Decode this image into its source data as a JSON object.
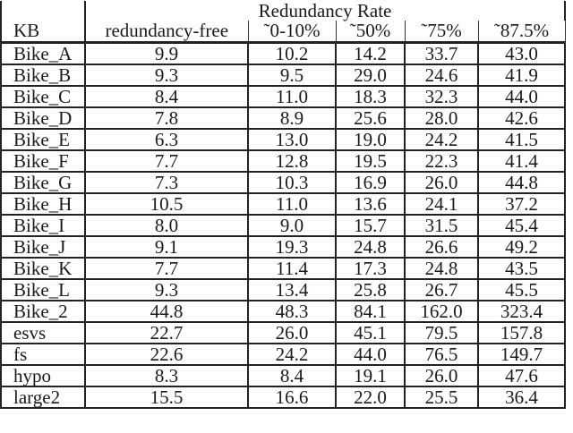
{
  "table": {
    "header_group": "Redundancy Rate",
    "columns": [
      "KB",
      "redundancy-free",
      "˜0-10%",
      "˜50%",
      "˜75%",
      "˜87.5%"
    ],
    "rows": [
      [
        "Bike_A",
        "9.9",
        "10.2",
        "14.2",
        "33.7",
        "43.0"
      ],
      [
        "Bike_B",
        "9.3",
        "9.5",
        "29.0",
        "24.6",
        "41.9"
      ],
      [
        "Bike_C",
        "8.4",
        "11.0",
        "18.3",
        "32.3",
        "44.0"
      ],
      [
        "Bike_D",
        "7.8",
        "8.9",
        "25.6",
        "28.0",
        "42.6"
      ],
      [
        "Bike_E",
        "6.3",
        "13.0",
        "19.0",
        "24.2",
        "41.5"
      ],
      [
        "Bike_F",
        "7.7",
        "12.8",
        "19.5",
        "22.3",
        "41.4"
      ],
      [
        "Bike_G",
        "7.3",
        "10.3",
        "16.9",
        "26.0",
        "44.8"
      ],
      [
        "Bike_H",
        "10.5",
        "11.0",
        "13.6",
        "24.1",
        "37.2"
      ],
      [
        "Bike_I",
        "8.0",
        "9.0",
        "15.7",
        "31.5",
        "45.4"
      ],
      [
        "Bike_J",
        "9.1",
        "19.3",
        "24.8",
        "26.6",
        "49.2"
      ],
      [
        "Bike_K",
        "7.7",
        "11.4",
        "17.3",
        "24.8",
        "43.5"
      ],
      [
        "Bike_L",
        "9.3",
        "13.4",
        "25.8",
        "26.7",
        "45.5"
      ],
      [
        "Bike_2",
        "44.8",
        "48.3",
        "84.1",
        "162.0",
        "323.4"
      ],
      [
        "esvs",
        "22.7",
        "26.0",
        "45.1",
        "79.5",
        "157.8"
      ],
      [
        "fs",
        "22.6",
        "24.2",
        "44.0",
        "76.5",
        "149.7"
      ],
      [
        "hypo",
        "8.3",
        "8.4",
        "19.1",
        "26.0",
        "47.6"
      ],
      [
        "large2",
        "15.5",
        "16.6",
        "22.0",
        "25.5",
        "36.4"
      ]
    ]
  }
}
